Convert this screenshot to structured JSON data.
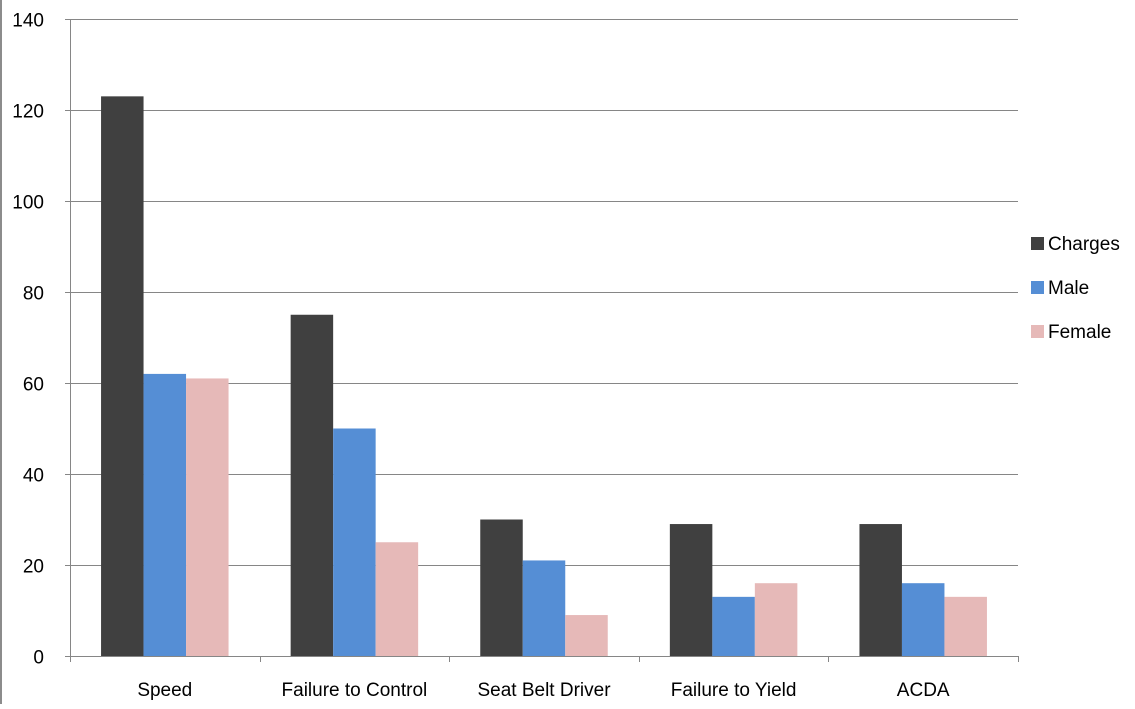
{
  "chart_data": {
    "type": "bar",
    "categories": [
      "Speed",
      "Failure to Control",
      "Seat Belt Driver",
      "Failure to Yield",
      "ACDA"
    ],
    "series": [
      {
        "name": "Charges",
        "color": "#404040",
        "values": [
          123,
          75,
          30,
          29,
          29
        ]
      },
      {
        "name": "Male",
        "color": "#558ed5",
        "values": [
          62,
          50,
          21,
          13,
          16
        ]
      },
      {
        "name": "Female",
        "color": "#e6b9b8",
        "values": [
          61,
          25,
          9,
          16,
          13
        ]
      }
    ],
    "ylim": [
      0,
      140
    ],
    "yticks": [
      0,
      20,
      40,
      60,
      80,
      100,
      120,
      140
    ],
    "grid": true,
    "legend_position": "right",
    "title": "",
    "xlabel": "",
    "ylabel": ""
  }
}
